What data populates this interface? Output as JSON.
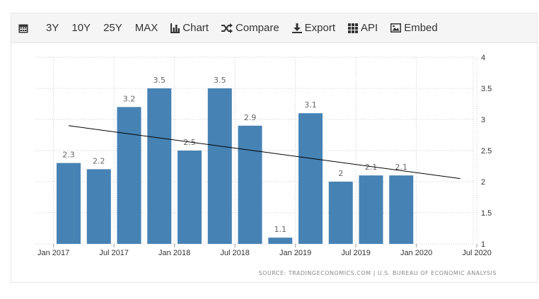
{
  "toolbar": {
    "range_buttons": [
      "3Y",
      "10Y",
      "25Y",
      "MAX"
    ],
    "chart_label": "Chart",
    "compare_label": "Compare",
    "export_label": "Export",
    "api_label": "API",
    "embed_label": "Embed"
  },
  "colors": {
    "bar": "#4682b4",
    "trend": "#000000",
    "grid": "#cccccc",
    "text": "#333333",
    "label": "#666666"
  },
  "source_note": "SOURCE: TRADINGECONOMICS.COM  |  U.S. BUREAU OF ECONOMIC ANALYSIS",
  "chart_data": {
    "type": "bar",
    "categories": [
      "Q1 2017",
      "Q2 2017",
      "Q3 2017",
      "Q4 2017",
      "Q1 2018",
      "Q2 2018",
      "Q3 2018",
      "Q4 2018",
      "Q1 2019",
      "Q2 2019",
      "Q3 2019",
      "Q4 2019"
    ],
    "values": [
      2.3,
      2.2,
      3.2,
      3.5,
      2.5,
      3.5,
      2.9,
      1.1,
      3.1,
      2.0,
      2.1,
      2.1
    ],
    "value_labels": [
      "2.3",
      "2.2",
      "3.2",
      "3.5",
      "2.5",
      "3.5",
      "2.9",
      "1.1",
      "3.1",
      "2",
      "2.1",
      "2.1"
    ],
    "x_tick_labels": [
      "Jan 2017",
      "Jul 2017",
      "Jan 2018",
      "Jul 2018",
      "Jan 2019",
      "Jul 2019",
      "Jan 2020",
      "Jul 2020"
    ],
    "y_ticks": [
      "1",
      "1.5",
      "2",
      "2.5",
      "3",
      "3.5",
      "4"
    ],
    "ylim": [
      1,
      4
    ],
    "trend_line": {
      "start_value": 2.9,
      "end_value": 2.05
    },
    "title": "",
    "xlabel": "",
    "ylabel": "",
    "grid": true
  }
}
